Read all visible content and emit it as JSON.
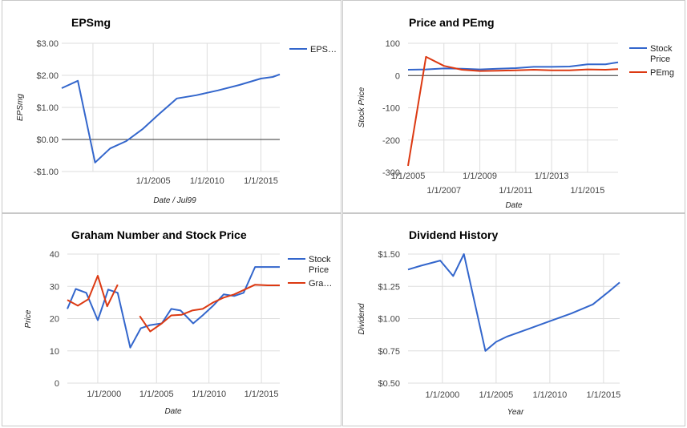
{
  "chart_data": [
    {
      "id": "eps",
      "type": "line",
      "title": "EPSmg",
      "xlabel": "Date / Jul99",
      "ylabel": "EPSmg",
      "x_type": "year",
      "xlim": [
        1996.5,
        2016.75
      ],
      "ylim": [
        -1.0,
        3.0
      ],
      "yticks": [
        3,
        2,
        1,
        0,
        -1
      ],
      "ytick_labels": [
        "$3.00",
        "$2.00",
        "$1.00",
        "$0.00",
        "-$1.00"
      ],
      "xticks": [
        2005,
        2010,
        2015
      ],
      "xtick_labels": [
        "1/1/2005",
        "1/1/2010",
        "1/1/2015"
      ],
      "vgrid": [
        1999.4,
        2005,
        2010,
        2015
      ],
      "zero_line": true,
      "legend": "right",
      "series": [
        {
          "name": "EPS…",
          "color": "#3366cc",
          "x": [
            1996.5,
            1998,
            1999.6,
            2001,
            2002.5,
            2004,
            2005.5,
            2007.2,
            2009,
            2011,
            2013,
            2015,
            2016.1,
            2016.75
          ],
          "y": [
            1.6,
            1.83,
            -0.72,
            -0.28,
            -0.05,
            0.32,
            0.78,
            1.28,
            1.38,
            1.53,
            1.7,
            1.9,
            1.95,
            2.03
          ]
        }
      ]
    },
    {
      "id": "pe",
      "type": "line",
      "title": "Price and PEmg",
      "xlabel": "Date",
      "ylabel": "Stock Price",
      "x_type": "year",
      "xlim": [
        2005,
        2016.7
      ],
      "ylim": [
        -300,
        100
      ],
      "yticks": [
        100,
        0,
        -100,
        -200,
        -300
      ],
      "ytick_labels": [
        "100",
        "0",
        "-100",
        "-200",
        "-300"
      ],
      "xticks": [
        2005,
        2007,
        2009,
        2011,
        2013,
        2015
      ],
      "xtick_labels": [
        "1/1/2005",
        "1/1/2007",
        "1/1/2009",
        "1/1/2011",
        "1/1/2013",
        "1/1/2015"
      ],
      "vgrid": [
        2007,
        2009,
        2011,
        2013,
        2015
      ],
      "zero_line": true,
      "legend": "right",
      "series": [
        {
          "name": "Stock Price",
          "color": "#3366cc",
          "x": [
            2005,
            2006,
            2007,
            2008,
            2009,
            2010,
            2011,
            2012,
            2013,
            2014,
            2015,
            2016,
            2016.7
          ],
          "y": [
            18,
            19,
            22,
            21,
            19,
            21,
            23,
            27,
            27,
            28,
            35,
            35,
            41
          ]
        },
        {
          "name": "PEmg",
          "color": "#dc3912",
          "x": [
            2005,
            2006,
            2007,
            2008,
            2009,
            2010,
            2011,
            2012,
            2013,
            2014,
            2015,
            2016,
            2016.7
          ],
          "y": [
            -280,
            58,
            30,
            18,
            14,
            15,
            16,
            18,
            16,
            16,
            19,
            18,
            20
          ]
        }
      ]
    },
    {
      "id": "graham",
      "type": "line",
      "title": "Graham Number and Stock Price",
      "xlabel": "Date",
      "ylabel": "Price",
      "x_type": "year",
      "xlim": [
        1996.5,
        2016.75
      ],
      "ylim": [
        0,
        40
      ],
      "yticks": [
        40,
        30,
        20,
        10,
        0
      ],
      "ytick_labels": [
        "40",
        "30",
        "20",
        "10",
        "0"
      ],
      "xticks": [
        2000,
        2005,
        2010,
        2015
      ],
      "xtick_labels": [
        "1/1/2000",
        "1/1/2005",
        "1/1/2010",
        "1/1/2015"
      ],
      "vgrid": [
        1999.4,
        2005,
        2010,
        2015
      ],
      "zero_line": false,
      "legend": "right",
      "series": [
        {
          "name": "Stock Price",
          "color": "#3366cc",
          "x": [
            1996.5,
            1997.3,
            1998.3,
            1999.4,
            2000.4,
            2001.3,
            2002.5,
            2003.5,
            2004.4,
            2005.5,
            2006.4,
            2007.3,
            2008.5,
            2009.4,
            2010.4,
            2011.4,
            2012.4,
            2013.3,
            2014.4,
            2015.6,
            2016.75
          ],
          "y": [
            23,
            29.2,
            28,
            19.5,
            29,
            28,
            11,
            17,
            18,
            18.5,
            23,
            22.5,
            18.5,
            21,
            24,
            27.5,
            27,
            28,
            36,
            36,
            36
          ]
        },
        {
          "name": "Gra…",
          "color": "#dc3912",
          "segments": [
            {
              "x": [
                1996.5,
                1997.5,
                1998.5,
                1999.4,
                2000.3,
                2001.3
              ],
              "y": [
                25.8,
                24,
                26,
                33.3,
                23.8,
                30.5
              ]
            },
            {
              "x": [
                2003.4,
                2004.4,
                2005.5,
                2006.4,
                2007.4,
                2008.4,
                2009.4,
                2010.4,
                2011.4,
                2012.4,
                2013.4,
                2014.4,
                2015.6,
                2016.75
              ],
              "y": [
                20.8,
                16,
                18.5,
                21,
                21.2,
                22.5,
                23,
                25,
                26.5,
                27.5,
                29,
                30.5,
                30.3,
                30.3
              ]
            }
          ]
        }
      ]
    },
    {
      "id": "dividend",
      "type": "line",
      "title": "Dividend History",
      "xlabel": "Year",
      "ylabel": "Dividend",
      "x_type": "year",
      "xlim": [
        1996.8,
        2016.5
      ],
      "ylim": [
        0.5,
        1.5
      ],
      "yticks": [
        1.5,
        1.25,
        1.0,
        0.75,
        0.5
      ],
      "ytick_labels": [
        "$1.50",
        "$1.25",
        "$1.00",
        "$0.75",
        "$0.50"
      ],
      "xticks": [
        2000,
        2005,
        2010,
        2015
      ],
      "xtick_labels": [
        "1/1/2000",
        "1/1/2005",
        "1/1/2010",
        "1/1/2015"
      ],
      "vgrid": [
        2000,
        2005,
        2010,
        2015
      ],
      "zero_line": false,
      "legend": "none",
      "series": [
        {
          "name": "Dividend",
          "color": "#3366cc",
          "x": [
            1996.8,
            1998,
            1999.8,
            2001,
            2002,
            2004,
            2005,
            2006,
            2008,
            2010,
            2012,
            2014,
            2015.5,
            2016.5
          ],
          "y": [
            1.38,
            1.41,
            1.45,
            1.33,
            1.5,
            0.75,
            0.82,
            0.86,
            0.92,
            0.98,
            1.04,
            1.11,
            1.21,
            1.28
          ]
        }
      ]
    }
  ]
}
